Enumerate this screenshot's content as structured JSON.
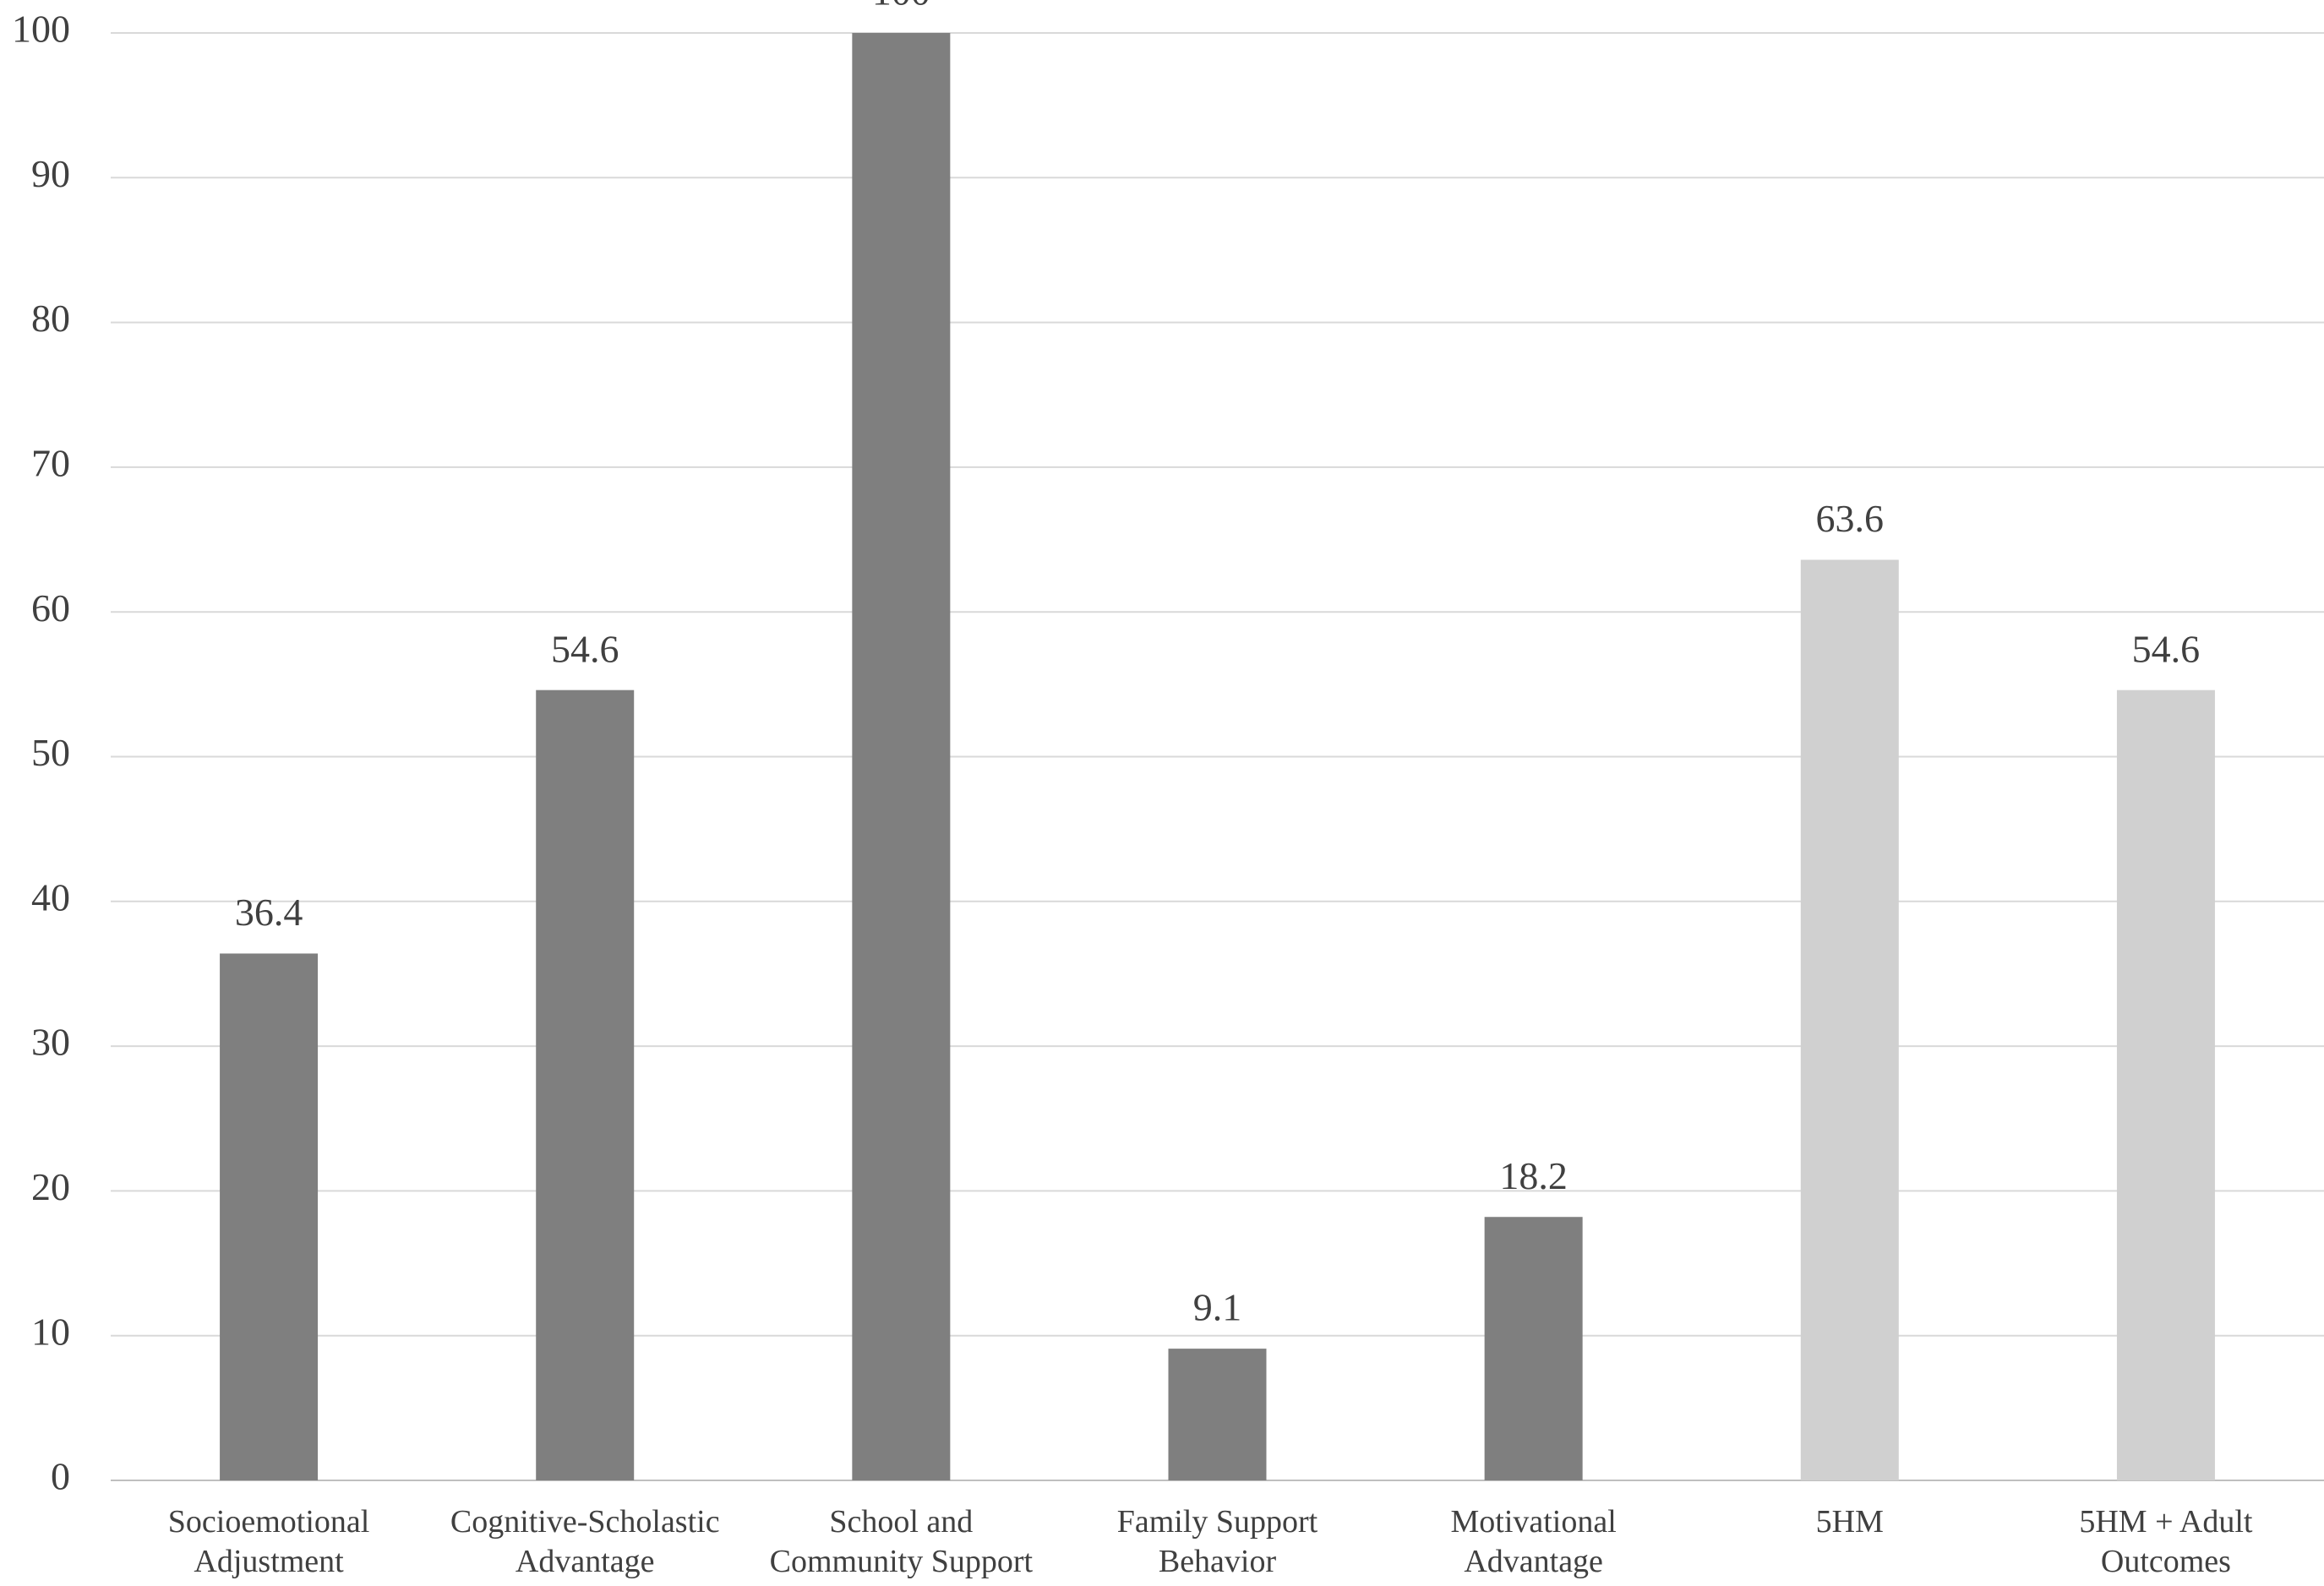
{
  "chart_data": {
    "type": "bar",
    "categories": [
      "Socioemotional\nAdjustment",
      "Cognitive-Scholastic\nAdvantage",
      "School and\nCommunity Support",
      "Family Support\nBehavior",
      "Motivational\nAdvantage",
      "5HM",
      "5HM + Adult\nOutcomes"
    ],
    "values": [
      36.4,
      54.6,
      100,
      9.1,
      18.2,
      63.6,
      54.6
    ],
    "colors": [
      "#7f7f7f",
      "#7f7f7f",
      "#7f7f7f",
      "#7f7f7f",
      "#7f7f7f",
      "#d0d0d0",
      "#d0d0d0"
    ],
    "ylim": [
      0,
      100
    ],
    "yticks": [
      0,
      10,
      20,
      30,
      40,
      50,
      60,
      70,
      80,
      90,
      100
    ],
    "grid": true
  }
}
